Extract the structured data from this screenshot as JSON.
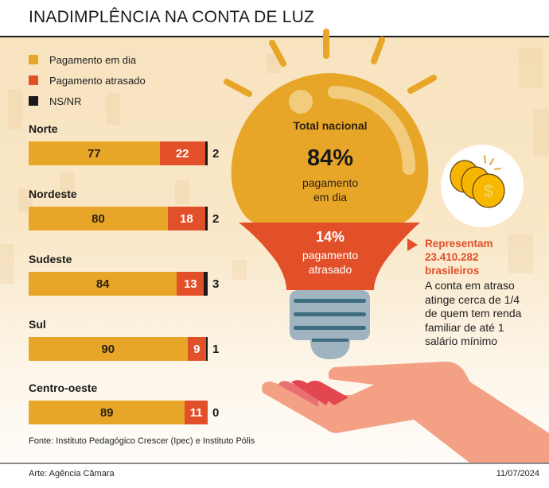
{
  "header": {
    "title": "INADIMPLÊNCIA NA CONTA DE LUZ"
  },
  "colors": {
    "on_time": "#e8a628",
    "late": "#e2502a",
    "ns_nr": "#1a1a1a",
    "bulb_base": "#9fb3c0",
    "bulb_stripe": "#3e6d7f",
    "hand": "#f3a085",
    "fingers": "#e2464e"
  },
  "legend": [
    {
      "label": "Pagamento em dia",
      "color": "#e8a628"
    },
    {
      "label": "Pagamento atrasado",
      "color": "#e2502a"
    },
    {
      "label": "NS/NR",
      "color": "#1a1a1a"
    }
  ],
  "chart_data": {
    "type": "bar",
    "orientation": "horizontal",
    "stacked": true,
    "title": "INADIMPLÊNCIA NA CONTA DE LUZ",
    "unit": "%",
    "categories": [
      "Norte",
      "Nordeste",
      "Sudeste",
      "Sul",
      "Centro-oeste"
    ],
    "series": [
      {
        "name": "Pagamento em dia",
        "values": [
          77,
          80,
          84,
          90,
          89
        ]
      },
      {
        "name": "Pagamento atrasado",
        "values": [
          22,
          18,
          13,
          9,
          11
        ]
      },
      {
        "name": "NS/NR",
        "values": [
          2,
          2,
          3,
          1,
          0
        ]
      }
    ],
    "legend_position": "top-left",
    "xlim": [
      0,
      100
    ],
    "grid": false
  },
  "national": {
    "label": "Total nacional",
    "on_time_value": "84%",
    "on_time_label_1": "pagamento",
    "on_time_label_2": "em dia",
    "late_value": "14%",
    "late_label_1": "pagamento",
    "late_label_2": "atrasado"
  },
  "callout": {
    "head_1": "Representam",
    "head_2": "23.410.282",
    "head_3": "brasileiros",
    "body_1": "A conta em atraso",
    "body_2": "atinge cerca de 1/4",
    "body_3": "de quem tem renda",
    "body_4": "familiar de até 1",
    "body_5": "salário mínimo"
  },
  "footer": {
    "source": "Fonte: Instituto Pedagógico Crescer (Ipec) e Instituto Pólis",
    "credit": "Arte: Agência Câmara",
    "date": "11/07/2024"
  }
}
